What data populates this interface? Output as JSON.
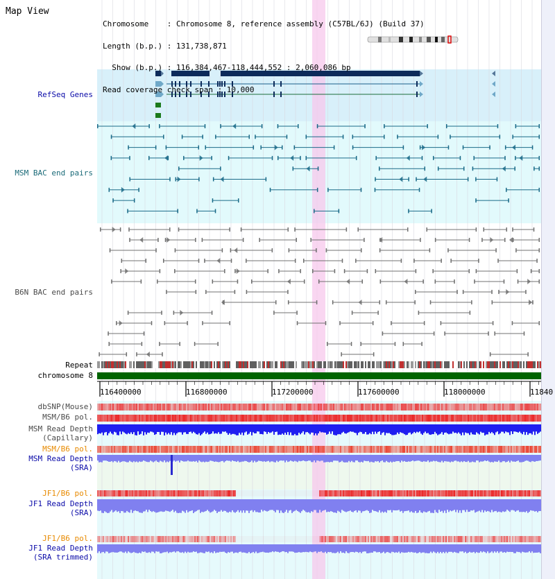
{
  "header": {
    "title": "Map View",
    "info_lines": [
      "Chromosome    : Chromosome 8, reference assembly (C57BL/6J) (Build 37)",
      "Length (b.p.) : 131,738,871",
      "  Show (b.p.) : 116,384,467-118,444,552 : 2,060,086 bp",
      "Read coverage check span : 10,000"
    ]
  },
  "colors": {
    "refseq_bg": "#d8f0fa",
    "bac_bg": "#e2fafc",
    "highlight": "#f7c8ec",
    "refseq_gene": "#0c2a5a",
    "msm_bac": "#1a6a88",
    "b6n_bac": "#707070",
    "chromosome_bar": "#006400",
    "snp_red": "#ee3333",
    "depth_blue": "#1f1ff0",
    "depth_light_blue": "#8080f0",
    "sra_bg": "#eef8ee",
    "jf1_bg": "#dcf6f8"
  },
  "tracks": {
    "refseq": "RefSeq Genes",
    "msm_bac": "MSM BAC end pairs",
    "b6n_bac": "B6N BAC end pairs",
    "repeat": "Repeat",
    "chromosome": "chromosome 8",
    "dbsnp": "dbSNP(Mouse)",
    "msm_b6_pol_1": "MSM/B6 pol.",
    "msm_depth_cap_1": "MSM Read Depth",
    "msm_depth_cap_2": "(Capillary)",
    "msm_b6_pol_2": "MSM/B6 pol.",
    "msm_depth_sra_1": "MSM Read Depth",
    "msm_depth_sra_2": "(SRA)",
    "jf1_b6_pol_1": "JF1/B6 pol.",
    "jf1_depth_sra_1": "JF1 Read Depth",
    "jf1_depth_sra_2": "(SRA)",
    "jf1_b6_pol_2": "JF1/B6 pol.",
    "jf1_depth_trim_1": "JF1 Read Depth",
    "jf1_depth_trim_2": "(SRA trimmed)"
  },
  "axis": {
    "tick_labels": [
      "116400000",
      "116800000",
      "117200000",
      "117600000",
      "118000000",
      "11840"
    ]
  }
}
